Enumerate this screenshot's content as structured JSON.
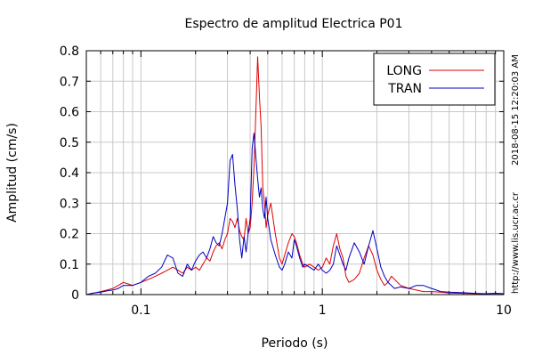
{
  "chart_data": {
    "type": "line",
    "title": "Espectro de amplitud Electrica P01",
    "xlabel": "Periodo (s)",
    "ylabel": "Amplitud (cm/s)",
    "x_scale": "log",
    "xlim": [
      0.05,
      10
    ],
    "ylim": [
      0,
      0.8
    ],
    "x_ticks": [
      0.1,
      1,
      10
    ],
    "x_tick_labels": [
      "0.1",
      "1",
      "10"
    ],
    "y_ticks": [
      0,
      0.1,
      0.2,
      0.3,
      0.4,
      0.5,
      0.6,
      0.7,
      0.8
    ],
    "y_tick_labels": [
      "0",
      "0.1",
      "0.2",
      "0.3",
      "0.4",
      "0.5",
      "0.6",
      "0.7",
      "0.8"
    ],
    "grid": true,
    "legend": "top-right",
    "series": [
      {
        "name": "LONG",
        "color": "#e00000",
        "x": [
          0.05,
          0.055,
          0.06,
          0.065,
          0.07,
          0.075,
          0.08,
          0.085,
          0.09,
          0.1,
          0.11,
          0.12,
          0.13,
          0.14,
          0.15,
          0.16,
          0.17,
          0.18,
          0.19,
          0.2,
          0.21,
          0.22,
          0.23,
          0.24,
          0.25,
          0.26,
          0.27,
          0.28,
          0.29,
          0.3,
          0.31,
          0.32,
          0.33,
          0.34,
          0.35,
          0.36,
          0.37,
          0.38,
          0.39,
          0.4,
          0.41,
          0.42,
          0.43,
          0.44,
          0.45,
          0.46,
          0.47,
          0.48,
          0.49,
          0.5,
          0.52,
          0.55,
          0.58,
          0.6,
          0.62,
          0.65,
          0.68,
          0.7,
          0.72,
          0.75,
          0.78,
          0.8,
          0.85,
          0.9,
          0.95,
          1.0,
          1.05,
          1.1,
          1.15,
          1.2,
          1.25,
          1.3,
          1.35,
          1.4,
          1.5,
          1.6,
          1.7,
          1.8,
          1.9,
          2.0,
          2.1,
          2.2,
          2.3,
          2.4,
          2.5,
          2.7,
          3.0,
          3.3,
          3.6,
          4.0,
          4.5,
          5.0,
          6.0,
          7.0,
          8.0,
          9.0,
          10.0
        ],
        "values": [
          0.0,
          0.005,
          0.01,
          0.015,
          0.02,
          0.03,
          0.04,
          0.035,
          0.03,
          0.04,
          0.05,
          0.06,
          0.07,
          0.08,
          0.09,
          0.08,
          0.07,
          0.09,
          0.08,
          0.09,
          0.08,
          0.1,
          0.12,
          0.11,
          0.14,
          0.16,
          0.17,
          0.15,
          0.18,
          0.2,
          0.25,
          0.24,
          0.22,
          0.25,
          0.21,
          0.19,
          0.18,
          0.25,
          0.2,
          0.22,
          0.3,
          0.42,
          0.6,
          0.78,
          0.65,
          0.55,
          0.35,
          0.3,
          0.22,
          0.26,
          0.3,
          0.2,
          0.12,
          0.1,
          0.13,
          0.17,
          0.2,
          0.19,
          0.17,
          0.13,
          0.1,
          0.09,
          0.1,
          0.09,
          0.08,
          0.09,
          0.12,
          0.1,
          0.16,
          0.2,
          0.15,
          0.12,
          0.06,
          0.04,
          0.05,
          0.07,
          0.12,
          0.16,
          0.13,
          0.08,
          0.05,
          0.03,
          0.04,
          0.06,
          0.05,
          0.03,
          0.02,
          0.015,
          0.01,
          0.01,
          0.008,
          0.005,
          0.004,
          0.003,
          0.003,
          0.004,
          0.003
        ]
      },
      {
        "name": "TRAN",
        "color": "#0000c0",
        "x": [
          0.05,
          0.055,
          0.06,
          0.065,
          0.07,
          0.075,
          0.08,
          0.085,
          0.09,
          0.1,
          0.11,
          0.12,
          0.13,
          0.14,
          0.15,
          0.16,
          0.17,
          0.18,
          0.19,
          0.2,
          0.21,
          0.22,
          0.23,
          0.24,
          0.25,
          0.26,
          0.27,
          0.28,
          0.29,
          0.3,
          0.31,
          0.32,
          0.33,
          0.34,
          0.35,
          0.36,
          0.37,
          0.38,
          0.39,
          0.4,
          0.41,
          0.42,
          0.43,
          0.44,
          0.45,
          0.46,
          0.47,
          0.48,
          0.49,
          0.5,
          0.52,
          0.55,
          0.58,
          0.6,
          0.62,
          0.65,
          0.68,
          0.7,
          0.72,
          0.75,
          0.78,
          0.8,
          0.85,
          0.9,
          0.95,
          1.0,
          1.05,
          1.1,
          1.15,
          1.2,
          1.25,
          1.3,
          1.35,
          1.4,
          1.5,
          1.6,
          1.7,
          1.8,
          1.9,
          2.0,
          2.1,
          2.2,
          2.3,
          2.4,
          2.5,
          2.7,
          3.0,
          3.3,
          3.6,
          4.0,
          4.5,
          5.0,
          6.0,
          7.0,
          8.0,
          9.0,
          10.0
        ],
        "values": [
          0.0,
          0.005,
          0.008,
          0.012,
          0.015,
          0.02,
          0.03,
          0.03,
          0.03,
          0.04,
          0.06,
          0.07,
          0.09,
          0.13,
          0.12,
          0.07,
          0.06,
          0.1,
          0.08,
          0.11,
          0.13,
          0.14,
          0.12,
          0.15,
          0.19,
          0.17,
          0.16,
          0.2,
          0.25,
          0.3,
          0.44,
          0.46,
          0.36,
          0.28,
          0.18,
          0.12,
          0.19,
          0.14,
          0.2,
          0.25,
          0.48,
          0.53,
          0.45,
          0.38,
          0.32,
          0.35,
          0.28,
          0.25,
          0.32,
          0.25,
          0.18,
          0.13,
          0.09,
          0.08,
          0.1,
          0.14,
          0.12,
          0.18,
          0.16,
          0.12,
          0.09,
          0.1,
          0.09,
          0.08,
          0.1,
          0.08,
          0.07,
          0.08,
          0.1,
          0.16,
          0.13,
          0.1,
          0.08,
          0.12,
          0.17,
          0.14,
          0.1,
          0.16,
          0.21,
          0.15,
          0.09,
          0.06,
          0.04,
          0.03,
          0.02,
          0.025,
          0.02,
          0.03,
          0.03,
          0.02,
          0.01,
          0.008,
          0.006,
          0.004,
          0.003,
          0.004,
          0.003
        ]
      }
    ]
  },
  "side_notes": {
    "timestamp": "2018-08-15 12:20:03 AM",
    "url": "http://www.lis.ucr.ac.cr"
  }
}
